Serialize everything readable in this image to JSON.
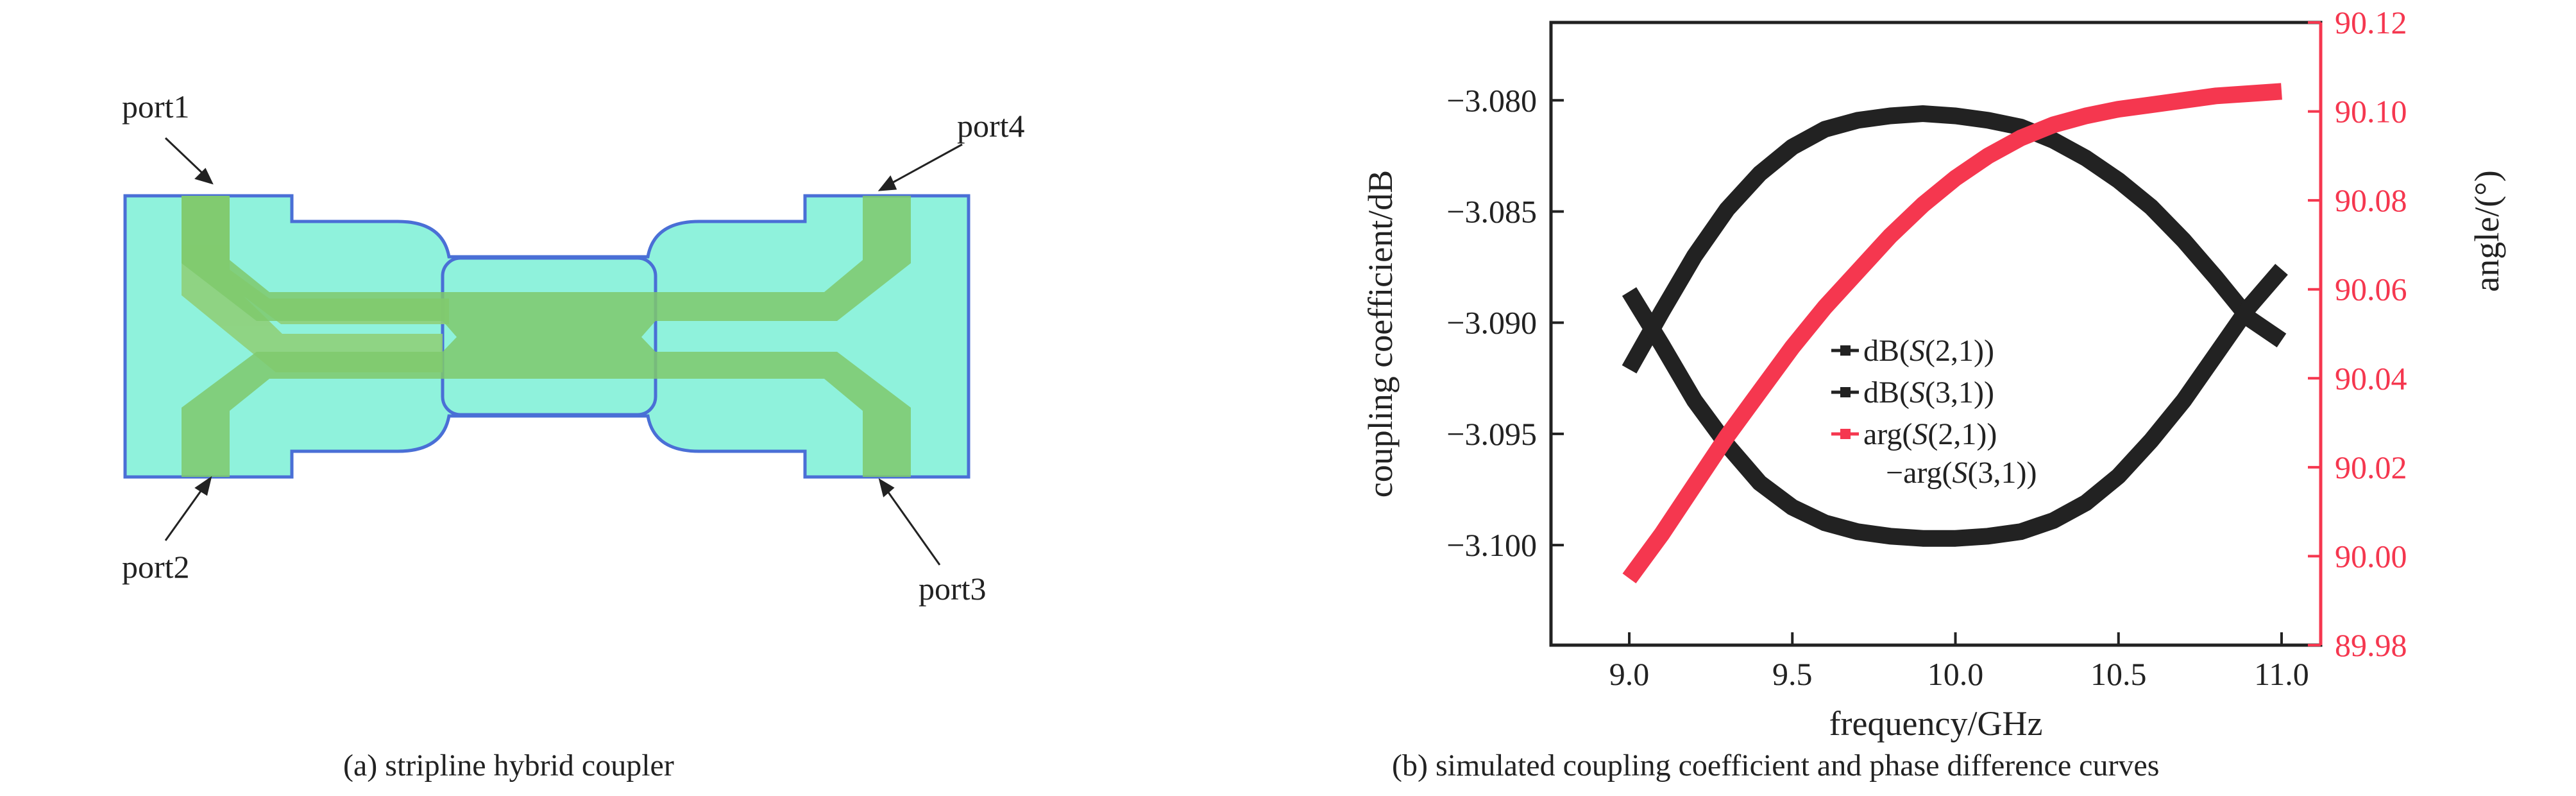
{
  "figure_a": {
    "caption": "(a) stripline hybrid coupler",
    "ports": [
      "port1",
      "port2",
      "port3",
      "port4"
    ],
    "colors": {
      "substrate": "#8ff2dc",
      "outline": "#4a6fd6",
      "conductor": "#8fd07a"
    }
  },
  "figure_b": {
    "caption": "(b) simulated coupling coefficient and phase difference curves"
  },
  "chart_data": {
    "type": "line",
    "xlabel": "frequency/GHz",
    "ylabel_left": "coupling coefficient/dB",
    "ylabel_right": "angle/(°)",
    "xlim": [
      8.76,
      11.12
    ],
    "ylim_left": [
      -3.1045,
      -3.0765
    ],
    "ylim_right": [
      89.98,
      90.12
    ],
    "x_ticks": [
      "9.0",
      "9.5",
      "10.0",
      "10.5",
      "11.0"
    ],
    "x_tick_values": [
      9.0,
      9.5,
      10.0,
      10.5,
      11.0
    ],
    "y_left_ticks": [
      "−3.080",
      "−3.085",
      "−3.090",
      "−3.095",
      "−3.100"
    ],
    "y_left_tick_values": [
      -3.08,
      -3.085,
      -3.09,
      -3.095,
      -3.1
    ],
    "y_right_ticks": [
      "89.98",
      "90.00",
      "90.02",
      "90.04",
      "90.06",
      "90.08",
      "90.10",
      "90.12"
    ],
    "y_right_tick_values": [
      89.98,
      90.0,
      90.02,
      90.04,
      90.06,
      90.08,
      90.1,
      90.12
    ],
    "x": [
      9.0,
      9.1,
      9.2,
      9.3,
      9.4,
      9.5,
      9.6,
      9.7,
      9.8,
      9.9,
      10.0,
      10.1,
      10.2,
      10.3,
      10.4,
      10.5,
      10.6,
      10.7,
      10.8,
      10.9,
      11.0
    ],
    "series": [
      {
        "name": "dB(S(2,1))",
        "axis": "left",
        "color": "#222222",
        "values": [
          -3.0921,
          -3.0895,
          -3.087,
          -3.0849,
          -3.0833,
          -3.0821,
          -3.0813,
          -3.0809,
          -3.0807,
          -3.0806,
          -3.0807,
          -3.0809,
          -3.0812,
          -3.0818,
          -3.0826,
          -3.0836,
          -3.0848,
          -3.0863,
          -3.088,
          -3.0898,
          -3.0908
        ]
      },
      {
        "name": "dB(S(3,1))",
        "axis": "left",
        "color": "#222222",
        "values": [
          -3.0886,
          -3.091,
          -3.0935,
          -3.0955,
          -3.0972,
          -3.0983,
          -3.099,
          -3.0994,
          -3.0996,
          -3.0997,
          -3.0997,
          -3.0996,
          -3.0994,
          -3.0989,
          -3.0981,
          -3.0969,
          -3.0953,
          -3.0935,
          -3.0914,
          -3.0893,
          -3.0876
        ]
      },
      {
        "name": "arg(S(2,1))−arg(S(3,1))",
        "axis": "right",
        "color": "#f5374f",
        "values": [
          89.995,
          90.005,
          90.016,
          90.027,
          90.037,
          90.047,
          90.056,
          90.064,
          90.072,
          90.079,
          90.085,
          90.09,
          90.094,
          90.097,
          90.099,
          90.1005,
          90.1015,
          90.1025,
          90.1035,
          90.104,
          90.1045
        ]
      }
    ],
    "legend": {
      "position": "center-left",
      "entries": [
        "dB(",
        "S",
        "(2,1))",
        "dB(",
        "S",
        "(3,1))",
        "arg(",
        "S",
        "(2,1))",
        "−arg(",
        "S",
        "(3,1))"
      ]
    }
  }
}
